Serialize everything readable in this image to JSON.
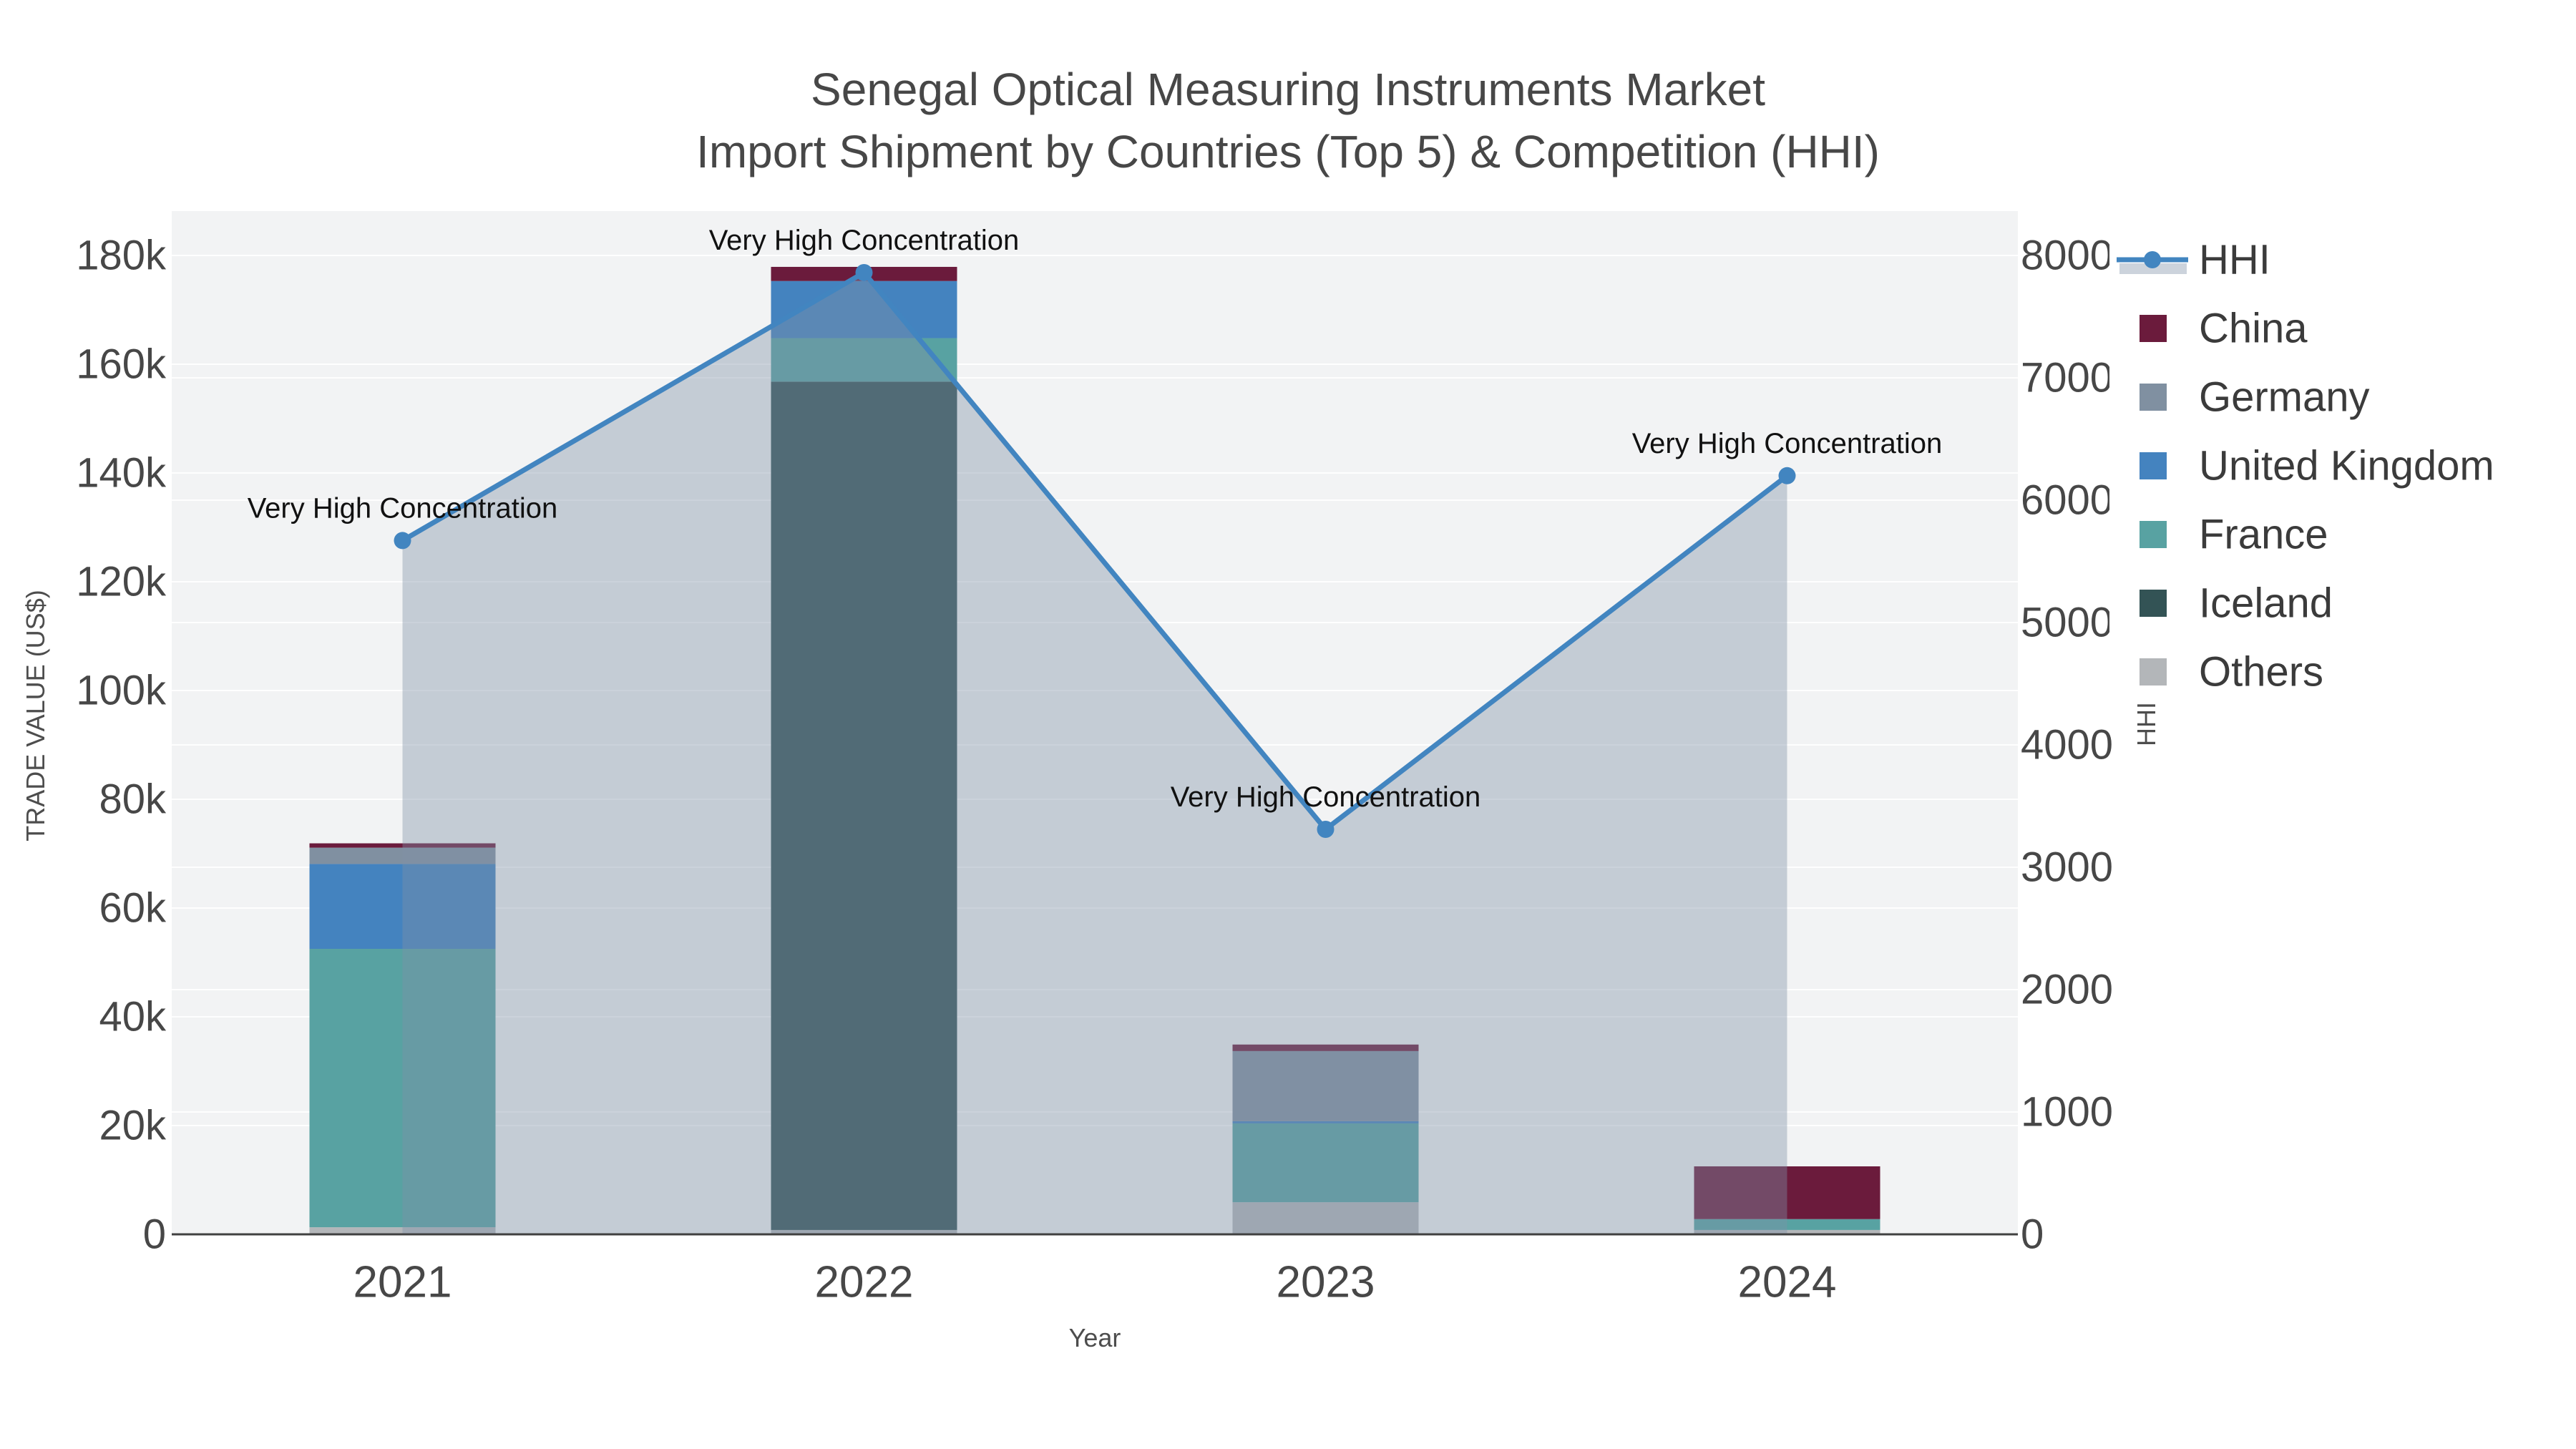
{
  "title": {
    "line1": "Senegal Optical Measuring Instruments Market",
    "line2": "Import Shipment by Countries (Top 5) & Competition (HHI)"
  },
  "chart_data": {
    "type": "bar",
    "subtype": "stacked-bars-with-hhi-line-and-area",
    "categories": [
      "2021",
      "2022",
      "2023",
      "2024"
    ],
    "series": [
      {
        "name": "China",
        "color": "#6b1b3c",
        "values": [
          800,
          2600,
          1200,
          9700
        ]
      },
      {
        "name": "Germany",
        "color": "#8090a1",
        "values": [
          3000,
          0,
          12900,
          0
        ]
      },
      {
        "name": "United Kingdom",
        "color": "#4483bf",
        "values": [
          15600,
          10500,
          400,
          0
        ]
      },
      {
        "name": "France",
        "color": "#58a2a2",
        "values": [
          51200,
          8000,
          14500,
          2000
        ]
      },
      {
        "name": "Iceland",
        "color": "#335355",
        "values": [
          0,
          156000,
          0,
          0
        ]
      },
      {
        "name": "Others",
        "color": "#b3b6b9",
        "values": [
          1300,
          800,
          5900,
          800
        ]
      }
    ],
    "stack_order_bottom_to_top": [
      "Others",
      "Iceland",
      "France",
      "United Kingdom",
      "Germany",
      "China"
    ],
    "line_series": {
      "name": "HHI",
      "color": "#4285c0",
      "area_color": "rgba(128,145,168,0.40)",
      "legend_band_color": "#ccd3dc",
      "axis": "right",
      "values": [
        5670,
        7860,
        3310,
        6200
      ]
    },
    "annotations": [
      {
        "x": "2021",
        "text": "Very High Concentration"
      },
      {
        "x": "2022",
        "text": "Very High Concentration"
      },
      {
        "x": "2023",
        "text": "Very High Concentration"
      },
      {
        "x": "2024",
        "text": "Very High Concentration"
      }
    ],
    "x_axis": {
      "label": "Year"
    },
    "left_axis": {
      "label": "TRADE VALUE (US$)",
      "min": 0,
      "max": 180000,
      "step": 20000,
      "tick_labels": [
        "0",
        "20k",
        "40k",
        "60k",
        "80k",
        "100k",
        "120k",
        "140k",
        "160k",
        "180k"
      ]
    },
    "right_axis": {
      "label": "HHI",
      "min": 0,
      "max": 8000,
      "step": 1000,
      "tick_labels": [
        "0",
        "1000",
        "2000",
        "3000",
        "4000",
        "5000",
        "6000",
        "7000",
        "8000"
      ]
    },
    "legend": {
      "position": "top-right",
      "entries": [
        "HHI",
        "China",
        "Germany",
        "United Kingdom",
        "France",
        "Iceland",
        "Others"
      ]
    },
    "plot_background": "#f2f3f4",
    "grid": true
  }
}
